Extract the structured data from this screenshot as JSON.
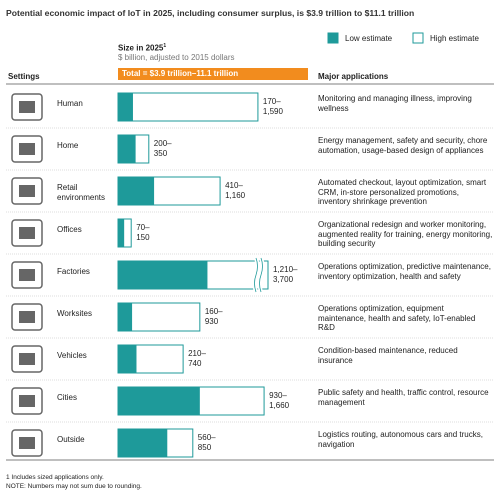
{
  "chart_data": {
    "type": "bar",
    "title": "Potential economic impact of IoT in 2025, including consumer surplus, is $3.9 trillion to $11.1 trillion",
    "settings_header": "Settings",
    "size_header": "Size in 2025",
    "size_footnote_mark": "1",
    "size_subheader": "$ billion, adjusted to 2015 dollars",
    "total_label": "Total = $3.9 trillion–11.1 trillion",
    "applications_header": "Major applications",
    "categories": [
      "Human",
      "Home",
      "Retail environments",
      "Offices",
      "Factories",
      "Worksites",
      "Vehicles",
      "Cities",
      "Outside"
    ],
    "series": [
      {
        "name": "Low estimate",
        "color": "#1e9a9a",
        "values": [
          170,
          200,
          410,
          70,
          1210,
          160,
          210,
          930,
          560
        ],
        "value_labels": [
          "170–",
          "200–",
          "410–",
          "70–",
          "1,210–",
          "160–",
          "210–",
          "930–",
          "560–"
        ]
      },
      {
        "name": "High estimate",
        "color": "#ffffff",
        "values": [
          1590,
          350,
          1160,
          150,
          3700,
          930,
          740,
          1660,
          850
        ],
        "value_labels": [
          "1,590",
          "350",
          "1,160",
          "150",
          "3,700",
          "930",
          "740",
          "1,660",
          "850"
        ]
      }
    ],
    "applications": [
      "Monitoring and managing illness, improving wellness",
      "Energy management, safety and security, chore automation, usage-based design of appliances",
      "Automated checkout, layout optimization, smart CRM, in-store personalized promotions, inventory shrinkage prevention",
      "Organizational redesign and worker monitoring, augmented reality for training, energy monitoring, building security",
      "Operations optimization, predictive maintenance, inventory optimization, health and safety",
      "Operations optimization, equipment maintenance, health and safety, IoT-enabled R&D",
      "Condition-based maintenance, reduced insurance",
      "Public safety and health, traffic control, resource management",
      "Logistics routing, autonomous cars and trucks, navigation"
    ],
    "footnotes": [
      "1  Includes sized applications only.",
      "NOTE: Numbers may not sum due to rounding."
    ]
  }
}
